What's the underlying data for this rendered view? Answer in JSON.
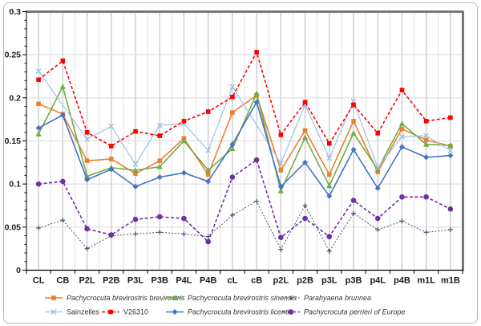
{
  "figure": {
    "background": "#ffffff",
    "frame_color": "#b9bcbf",
    "plot_border_color": "#777777",
    "axis_color": "#000000",
    "gridline_color": "#d9d9d9",
    "column_line_color": "#c3c3c3",
    "label_color": "#1a1a1a",
    "legend_text_color": "#333333"
  },
  "chart_data": {
    "type": "line",
    "title": "",
    "xlabel": "",
    "ylabel": "",
    "grid": true,
    "legend_position": "bottom",
    "categories": [
      "CL",
      "CB",
      "P2L",
      "P2B",
      "P3L",
      "P3B",
      "P4L",
      "P4B",
      "cL",
      "cB",
      "p2L",
      "p2B",
      "p3L",
      "p3B",
      "p4L",
      "p4B",
      "m1L",
      "m1B"
    ],
    "y_axis": {
      "min": 0,
      "max": 0.3,
      "major_step": 0.05,
      "minor_step": 0.01,
      "tick_labels": [
        "0",
        "0.05",
        "0.1",
        "0.15",
        "0.2",
        "0.25",
        "0.3"
      ]
    },
    "series": [
      {
        "name": "Pachycrocuta brevirostris brevirostris",
        "color": "#ED7D31",
        "marker": "square",
        "line": "solid",
        "italic": true,
        "values": [
          0.193,
          0.181,
          0.127,
          0.129,
          0.112,
          0.127,
          0.153,
          0.111,
          0.183,
          0.203,
          0.116,
          0.162,
          0.111,
          0.173,
          0.114,
          0.164,
          0.151,
          0.144
        ]
      },
      {
        "name": "Pachycrocuta brevirostris sinensis",
        "color": "#70AD47",
        "marker": "triangle",
        "line": "solid",
        "italic": true,
        "values": [
          0.158,
          0.213,
          0.109,
          0.119,
          0.116,
          0.12,
          0.15,
          0.116,
          0.141,
          0.205,
          0.092,
          0.154,
          0.098,
          0.159,
          0.117,
          0.17,
          0.146,
          0.145
        ]
      },
      {
        "name": "Parahyaena brunnea",
        "color": "#44546A",
        "marker": "plus",
        "line": "dotted",
        "italic": true,
        "values": [
          0.049,
          0.058,
          0.025,
          0.04,
          0.042,
          0.044,
          0.042,
          0.039,
          0.064,
          0.08,
          0.024,
          0.075,
          0.022,
          0.066,
          0.047,
          0.057,
          0.044,
          0.047
        ]
      },
      {
        "name": "Sainzelles",
        "color": "#9DC3E6",
        "marker": "x",
        "line": "solid",
        "italic": false,
        "values": [
          0.231,
          null,
          0.152,
          0.167,
          0.123,
          0.168,
          0.17,
          0.139,
          0.213,
          null,
          0.124,
          0.192,
          0.13,
          0.196,
          0.119,
          0.155,
          0.156,
          0.139
        ]
      },
      {
        "name": "V26310",
        "color": "#FF0000",
        "marker": "square",
        "line": "dashed",
        "italic": false,
        "values": [
          0.221,
          0.243,
          0.16,
          0.144,
          0.161,
          0.156,
          0.173,
          0.184,
          0.201,
          0.253,
          0.157,
          0.195,
          0.147,
          0.192,
          0.159,
          0.209,
          0.173,
          0.177
        ]
      },
      {
        "name": "Pachycrocuta brevirostris licenti",
        "color": "#4472C4",
        "marker": "diamond",
        "line": "solid",
        "italic": true,
        "values": [
          0.165,
          0.18,
          0.105,
          0.117,
          0.097,
          0.108,
          0.113,
          0.103,
          0.146,
          0.195,
          0.097,
          0.125,
          0.086,
          0.14,
          0.095,
          0.143,
          0.131,
          0.133
        ]
      },
      {
        "name": "Pachycrocuta perrieri of Europe",
        "color": "#7030A0",
        "marker": "circle",
        "line": "dashed",
        "italic": true,
        "values": [
          0.1,
          0.103,
          0.048,
          0.041,
          0.059,
          0.062,
          0.06,
          0.033,
          0.108,
          0.128,
          0.038,
          0.06,
          0.039,
          0.081,
          0.06,
          0.085,
          0.085,
          0.071
        ]
      }
    ],
    "legend_rows": [
      [
        0,
        1,
        2
      ],
      [
        3,
        4,
        5,
        6
      ]
    ]
  }
}
